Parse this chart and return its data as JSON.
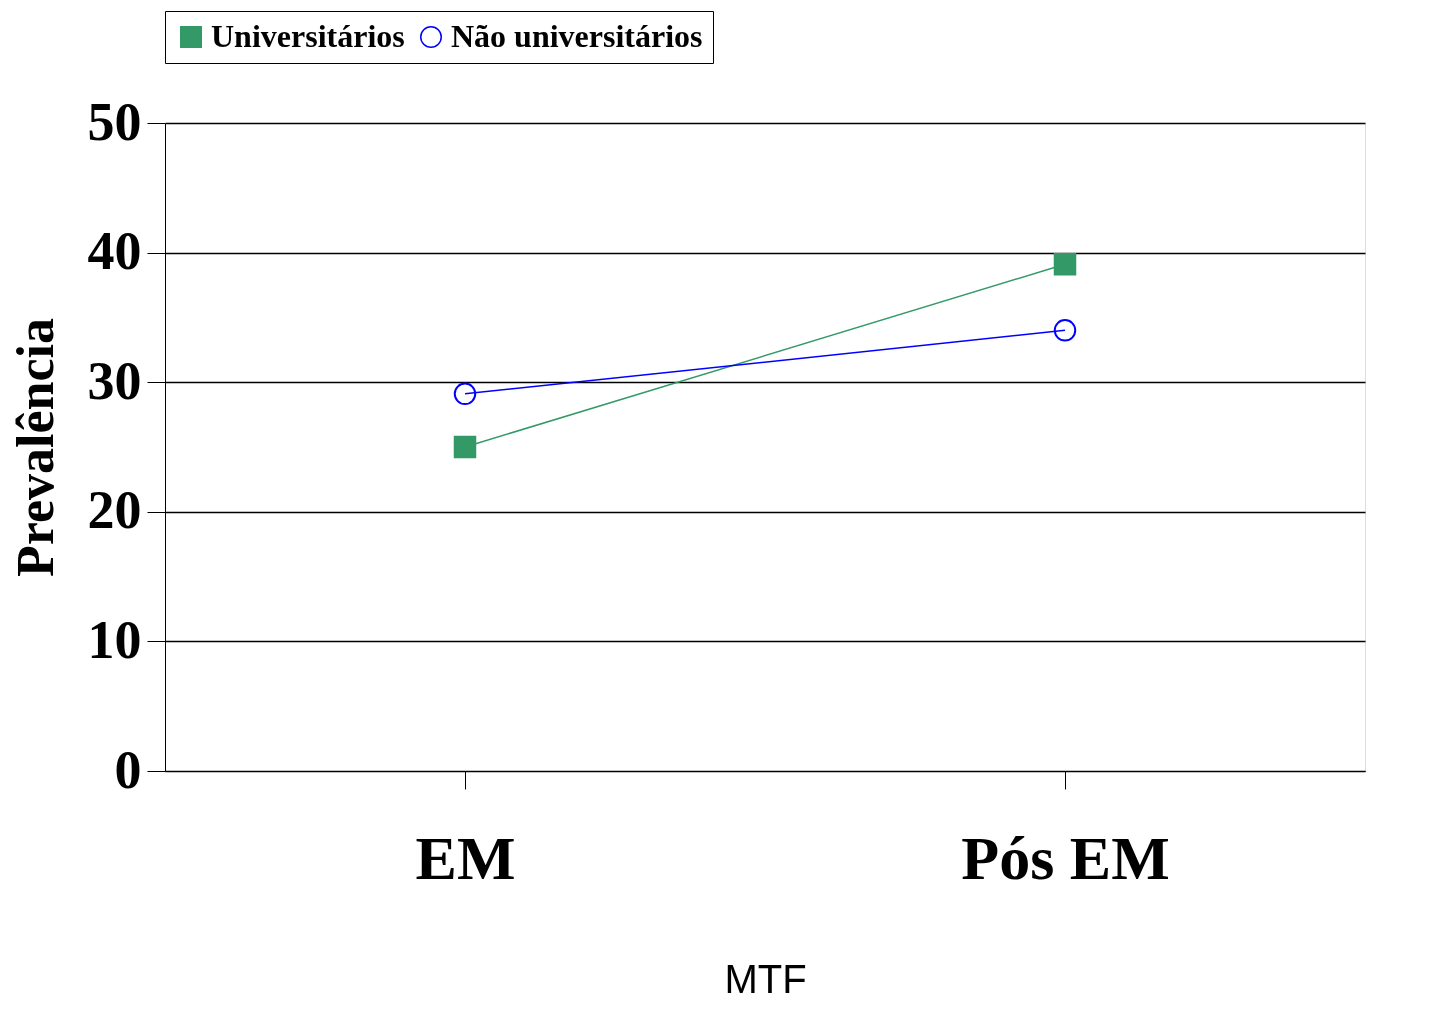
{
  "chart_data": {
    "type": "line",
    "xlabel": "MTF",
    "ylabel": "Prevalência",
    "categories": [
      "EM",
      "Pós EM"
    ],
    "series": [
      {
        "name": "Universitários",
        "color": "#339966",
        "marker": "square",
        "values": [
          25,
          39.1
        ]
      },
      {
        "name": "Não universitários",
        "color": "#0000ff",
        "marker": "circle",
        "values": [
          29.1,
          34
        ]
      }
    ],
    "ylim": [
      0,
      50
    ],
    "yticks": [
      0,
      10,
      20,
      30,
      40,
      50
    ],
    "grid": "y",
    "legend": "top"
  }
}
